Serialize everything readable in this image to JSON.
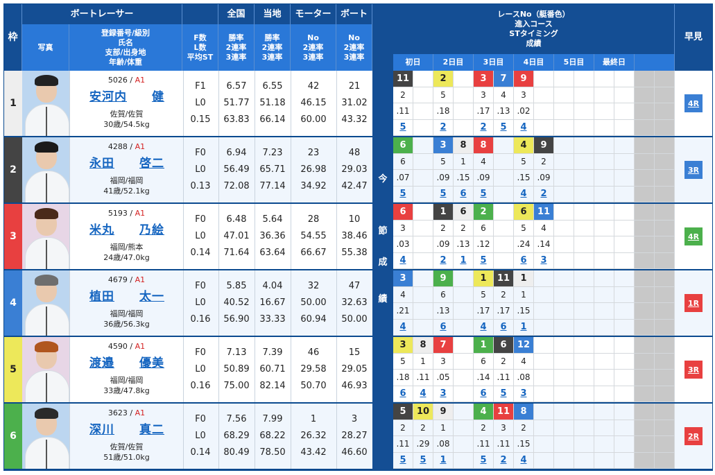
{
  "header": {
    "waku": "枠",
    "boat_racer": "ボートレーサー",
    "photo": "写真",
    "profile_lines": [
      "登録番号/級別",
      "氏名",
      "支部/出身地",
      "年齢/体重"
    ],
    "fls_lines": [
      "F数",
      "L数",
      "平均ST"
    ],
    "national": {
      "label": "全国",
      "lines": [
        "勝率",
        "2連率",
        "3連率"
      ]
    },
    "local": {
      "label": "当地",
      "lines": [
        "勝率",
        "2連率",
        "3連率"
      ]
    },
    "motor": {
      "label": "モーター",
      "lines": [
        "No",
        "2連率",
        "3連率"
      ]
    },
    "boat": {
      "label": "ボート",
      "lines": [
        "No",
        "2連率",
        "3連率"
      ]
    },
    "race_info_lines": [
      "レースNo（艇番色）",
      "進入コース",
      "STタイミング",
      "成績"
    ],
    "days": [
      "初日",
      "2日目",
      "3日目",
      "4日目",
      "5日目",
      "最終日",
      ""
    ],
    "hayami": "早見"
  },
  "strip_chars": [
    "今",
    "節",
    "成",
    "績"
  ],
  "colors": {
    "boat1": "#ffffff",
    "boat2": "#444444",
    "boat3": "#e84040",
    "boat4": "#3a7fd4",
    "boat5": "#ede85a",
    "boat6": "#4cb04c",
    "header_dark": "#144e94",
    "header_mid": "#2a78d8",
    "link": "#1565c0",
    "class": "#d42020"
  },
  "racers": [
    {
      "waku": "1",
      "waku_bg": "#eeeeee",
      "waku_fg": "#222",
      "photo_bg": "#bcd6f0",
      "hair": "#222",
      "reg": "5026",
      "cls": "A1",
      "name_family": "安河内",
      "name_given": "健",
      "branch": "佐賀/佐賀",
      "age_weight": "30歳/54.5kg",
      "f": "F1",
      "l": "L0",
      "st": "0.15",
      "nat": [
        "6.57",
        "51.77",
        "63.83"
      ],
      "loc": [
        "6.55",
        "51.18",
        "66.14"
      ],
      "motor": [
        "42",
        "46.15",
        "60.00"
      ],
      "boat": [
        "21",
        "31.02",
        "43.32"
      ],
      "races": [
        {
          "col": 0,
          "r": "11",
          "bg": "#444444",
          "fg": "#fff",
          "c": "2",
          "st": ".11",
          "res": "5"
        },
        {
          "col": 2,
          "r": "2",
          "bg": "#ede85a",
          "fg": "#222",
          "c": "5",
          "st": ".18",
          "res": "2"
        },
        {
          "col": 4,
          "r": "3",
          "bg": "#e84040",
          "fg": "#fff",
          "c": "3",
          "st": ".17",
          "res": "2"
        },
        {
          "col": 5,
          "r": "7",
          "bg": "#3a7fd4",
          "fg": "#fff",
          "c": "4",
          "st": ".13",
          "res": "5"
        },
        {
          "col": 6,
          "r": "9",
          "bg": "#e84040",
          "fg": "#fff",
          "c": "3",
          "st": ".02",
          "res": "4"
        }
      ],
      "hayami": "4R",
      "hayami_bg": "#3a7fd4"
    },
    {
      "waku": "2",
      "waku_bg": "#444444",
      "waku_fg": "#fff",
      "photo_bg": "#bcd6f0",
      "hair": "#1a1a1a",
      "reg": "4288",
      "cls": "A1",
      "name_family": "永田",
      "name_given": "啓二",
      "branch": "福岡/福岡",
      "age_weight": "41歳/52.1kg",
      "f": "F0",
      "l": "L0",
      "st": "0.13",
      "nat": [
        "6.94",
        "56.49",
        "72.08"
      ],
      "loc": [
        "7.23",
        "65.71",
        "77.14"
      ],
      "motor": [
        "23",
        "26.98",
        "34.92"
      ],
      "boat": [
        "48",
        "29.03",
        "42.47"
      ],
      "races": [
        {
          "col": 0,
          "r": "6",
          "bg": "#4cb04c",
          "fg": "#fff",
          "c": "6",
          "st": ".07",
          "res": "5"
        },
        {
          "col": 2,
          "r": "3",
          "bg": "#3a7fd4",
          "fg": "#fff",
          "c": "5",
          "st": ".09",
          "res": "5"
        },
        {
          "col": 3,
          "r": "8",
          "bg": "#eeeeee",
          "fg": "#222",
          "c": "1",
          "st": ".15",
          "res": "6"
        },
        {
          "col": 4,
          "r": "8",
          "bg": "#e84040",
          "fg": "#fff",
          "c": "4",
          "st": ".09",
          "res": "5"
        },
        {
          "col": 6,
          "r": "4",
          "bg": "#ede85a",
          "fg": "#222",
          "c": "5",
          "st": ".15",
          "res": "4"
        },
        {
          "col": 7,
          "r": "9",
          "bg": "#444444",
          "fg": "#fff",
          "c": "2",
          "st": ".09",
          "res": "2"
        }
      ],
      "hayami": "3R",
      "hayami_bg": "#3a7fd4"
    },
    {
      "waku": "3",
      "waku_bg": "#e84040",
      "waku_fg": "#fff",
      "photo_bg": "#e7d6e6",
      "hair": "#4a2a1a",
      "reg": "5193",
      "cls": "A1",
      "name_family": "米丸",
      "name_given": "乃絵",
      "branch": "福岡/熊本",
      "age_weight": "24歳/47.0kg",
      "f": "F0",
      "l": "L0",
      "st": "0.14",
      "nat": [
        "6.48",
        "47.01",
        "71.64"
      ],
      "loc": [
        "5.64",
        "36.36",
        "63.64"
      ],
      "motor": [
        "28",
        "54.55",
        "66.67"
      ],
      "boat": [
        "10",
        "38.46",
        "55.38"
      ],
      "races": [
        {
          "col": 0,
          "r": "6",
          "bg": "#e84040",
          "fg": "#fff",
          "c": "3",
          "st": ".03",
          "res": "4"
        },
        {
          "col": 2,
          "r": "1",
          "bg": "#444444",
          "fg": "#fff",
          "c": "2",
          "st": ".09",
          "res": "2"
        },
        {
          "col": 3,
          "r": "6",
          "bg": "#eeeeee",
          "fg": "#222",
          "c": "2",
          "st": ".13",
          "res": "1"
        },
        {
          "col": 4,
          "r": "2",
          "bg": "#4cb04c",
          "fg": "#fff",
          "c": "6",
          "st": ".12",
          "res": "5"
        },
        {
          "col": 6,
          "r": "6",
          "bg": "#ede85a",
          "fg": "#222",
          "c": "5",
          "st": ".24",
          "res": "6"
        },
        {
          "col": 7,
          "r": "11",
          "bg": "#3a7fd4",
          "fg": "#fff",
          "c": "4",
          "st": ".14",
          "res": "3"
        }
      ],
      "hayami": "4R",
      "hayami_bg": "#4cb04c"
    },
    {
      "waku": "4",
      "waku_bg": "#3a7fd4",
      "waku_fg": "#fff",
      "photo_bg": "#bcd6f0",
      "hair": "#6e6e6e",
      "reg": "4679",
      "cls": "A1",
      "name_family": "植田",
      "name_given": "太一",
      "branch": "福岡/福岡",
      "age_weight": "36歳/56.3kg",
      "f": "F0",
      "l": "L0",
      "st": "0.16",
      "nat": [
        "5.85",
        "40.52",
        "56.90"
      ],
      "loc": [
        "4.04",
        "16.67",
        "33.33"
      ],
      "motor": [
        "32",
        "50.00",
        "60.94"
      ],
      "boat": [
        "47",
        "32.63",
        "50.00"
      ],
      "races": [
        {
          "col": 0,
          "r": "3",
          "bg": "#3a7fd4",
          "fg": "#fff",
          "c": "4",
          "st": ".21",
          "res": "4"
        },
        {
          "col": 2,
          "r": "9",
          "bg": "#4cb04c",
          "fg": "#fff",
          "c": "6",
          "st": ".13",
          "res": "6"
        },
        {
          "col": 4,
          "r": "1",
          "bg": "#ede85a",
          "fg": "#222",
          "c": "5",
          "st": ".17",
          "res": "4"
        },
        {
          "col": 5,
          "r": "11",
          "bg": "#444444",
          "fg": "#fff",
          "c": "2",
          "st": ".17",
          "res": "6"
        },
        {
          "col": 6,
          "r": "1",
          "bg": "#eeeeee",
          "fg": "#222",
          "c": "1",
          "st": ".15",
          "res": "1"
        }
      ],
      "hayami": "1R",
      "hayami_bg": "#e84040"
    },
    {
      "waku": "5",
      "waku_bg": "#ede85a",
      "waku_fg": "#222",
      "photo_bg": "#e7d6e6",
      "hair": "#b0561e",
      "reg": "4590",
      "cls": "A1",
      "name_family": "渡邉",
      "name_given": "優美",
      "branch": "福岡/福岡",
      "age_weight": "33歳/47.8kg",
      "f": "F0",
      "l": "L0",
      "st": "0.16",
      "nat": [
        "7.13",
        "50.89",
        "75.00"
      ],
      "loc": [
        "7.39",
        "60.71",
        "82.14"
      ],
      "motor": [
        "46",
        "29.58",
        "50.70"
      ],
      "boat": [
        "15",
        "29.05",
        "46.93"
      ],
      "races": [
        {
          "col": 0,
          "r": "3",
          "bg": "#ede85a",
          "fg": "#222",
          "c": "5",
          "st": ".18",
          "res": "6"
        },
        {
          "col": 1,
          "r": "8",
          "bg": "#eeeeee",
          "fg": "#222",
          "c": "1",
          "st": ".11",
          "res": "4"
        },
        {
          "col": 2,
          "r": "7",
          "bg": "#e84040",
          "fg": "#fff",
          "c": "3",
          "st": ".05",
          "res": "3"
        },
        {
          "col": 4,
          "r": "1",
          "bg": "#4cb04c",
          "fg": "#fff",
          "c": "6",
          "st": ".14",
          "res": "6"
        },
        {
          "col": 5,
          "r": "6",
          "bg": "#444444",
          "fg": "#fff",
          "c": "2",
          "st": ".11",
          "res": "5"
        },
        {
          "col": 6,
          "r": "12",
          "bg": "#3a7fd4",
          "fg": "#fff",
          "c": "4",
          "st": ".08",
          "res": "3"
        }
      ],
      "hayami": "3R",
      "hayami_bg": "#e84040"
    },
    {
      "waku": "6",
      "waku_bg": "#4cb04c",
      "waku_fg": "#fff",
      "photo_bg": "#bcd6f0",
      "hair": "#2a2a2a",
      "reg": "3623",
      "cls": "A1",
      "name_family": "深川",
      "name_given": "真二",
      "branch": "佐賀/佐賀",
      "age_weight": "51歳/51.0kg",
      "f": "F0",
      "l": "L0",
      "st": "0.14",
      "nat": [
        "7.56",
        "68.29",
        "80.49"
      ],
      "loc": [
        "7.99",
        "68.22",
        "78.50"
      ],
      "motor": [
        "1",
        "26.32",
        "43.42"
      ],
      "boat": [
        "3",
        "28.27",
        "46.60"
      ],
      "races": [
        {
          "col": 0,
          "r": "5",
          "bg": "#444444",
          "fg": "#fff",
          "c": "2",
          "st": ".11",
          "res": "5"
        },
        {
          "col": 1,
          "r": "10",
          "bg": "#ede85a",
          "fg": "#222",
          "c": "2",
          "st": ".29",
          "res": "5"
        },
        {
          "col": 2,
          "r": "9",
          "bg": "#eeeeee",
          "fg": "#222",
          "c": "1",
          "st": ".08",
          "res": "1"
        },
        {
          "col": 4,
          "r": "4",
          "bg": "#4cb04c",
          "fg": "#fff",
          "c": "2",
          "st": ".11",
          "res": "5"
        },
        {
          "col": 5,
          "r": "11",
          "bg": "#e84040",
          "fg": "#fff",
          "c": "3",
          "st": ".11",
          "res": "2"
        },
        {
          "col": 6,
          "r": "8",
          "bg": "#3a7fd4",
          "fg": "#fff",
          "c": "2",
          "st": ".15",
          "res": "4"
        }
      ],
      "hayami": "2R",
      "hayami_bg": "#e84040"
    }
  ]
}
